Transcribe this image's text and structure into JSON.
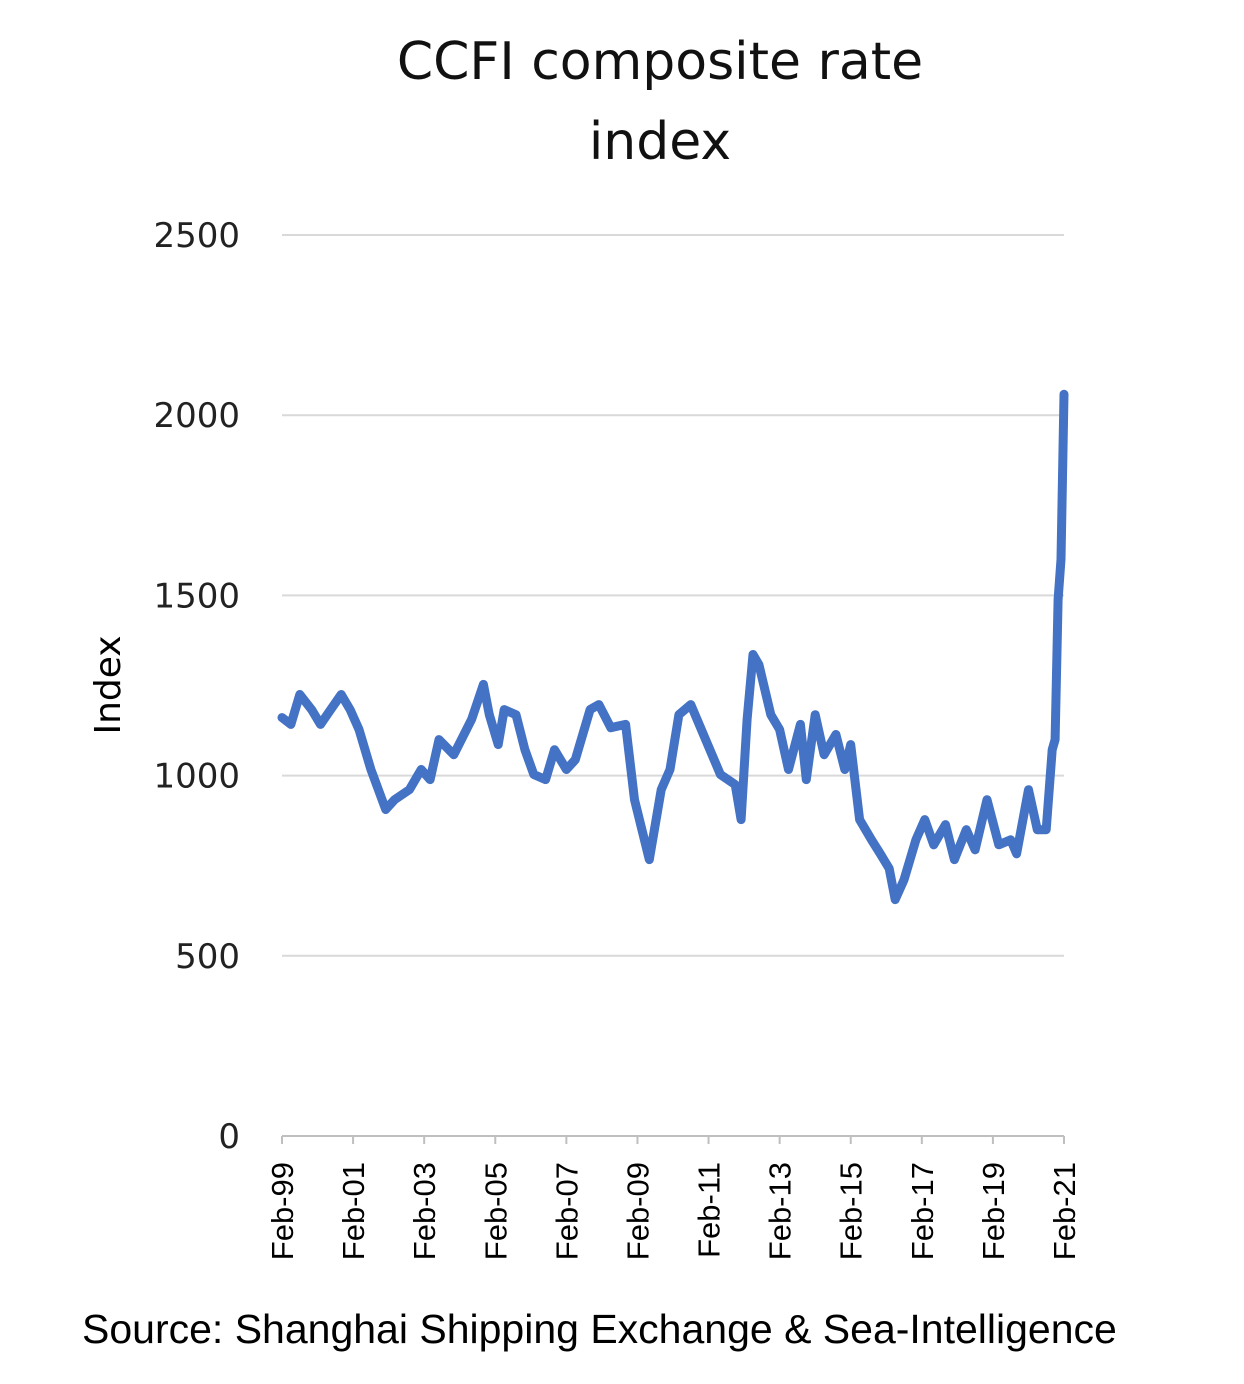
{
  "chart_data": {
    "type": "line",
    "title": "CCFI composite rate index",
    "xlabel": "",
    "ylabel": "Index",
    "ylim": [
      0,
      2500
    ],
    "yticks": [
      0,
      500,
      1000,
      1500,
      2000,
      2500
    ],
    "xlim": [
      "1999-02",
      "2021-02"
    ],
    "xtick_labels": [
      "Feb-99",
      "Feb-01",
      "Feb-03",
      "Feb-05",
      "Feb-07",
      "Feb-09",
      "Feb-11",
      "Feb-13",
      "Feb-15",
      "Feb-17",
      "Feb-19",
      "Feb-21"
    ],
    "grid": "horizontal",
    "line_color": "#4472C4",
    "series": [
      {
        "x": [
          "1999-02",
          "1999-05",
          "1999-08",
          "1999-12",
          "2000-03",
          "2000-06",
          "2000-10",
          "2001-01",
          "2001-04",
          "2001-08",
          "2002-01",
          "2002-04",
          "2002-09",
          "2003-01",
          "2003-04",
          "2003-07",
          "2003-12",
          "2004-06",
          "2004-10",
          "2004-12",
          "2005-03",
          "2005-05",
          "2005-09",
          "2005-12",
          "2006-03",
          "2006-07",
          "2006-10",
          "2007-02",
          "2007-05",
          "2007-10",
          "2008-01",
          "2008-05",
          "2008-10",
          "2009-01",
          "2009-06",
          "2009-10",
          "2010-01",
          "2010-04",
          "2010-08",
          "2011-01",
          "2011-06",
          "2011-11",
          "2012-01",
          "2012-03",
          "2012-05",
          "2012-07",
          "2012-11",
          "2013-02",
          "2013-05",
          "2013-09",
          "2013-11",
          "2014-02",
          "2014-05",
          "2014-09",
          "2014-12",
          "2015-02",
          "2015-05",
          "2015-09",
          "2015-12",
          "2016-03",
          "2016-05",
          "2016-08",
          "2016-12",
          "2017-03",
          "2017-06",
          "2017-10",
          "2018-01",
          "2018-05",
          "2018-08",
          "2018-12",
          "2019-04",
          "2019-08",
          "2019-10",
          "2020-02",
          "2020-05",
          "2020-08",
          "2020-10",
          "2020-11",
          "2020-12",
          "2021-01",
          "2021-02"
        ],
        "values": [
          1161,
          1142,
          1225,
          1183,
          1142,
          1178,
          1225,
          1183,
          1128,
          1017,
          906,
          933,
          961,
          1017,
          989,
          1100,
          1058,
          1156,
          1253,
          1169,
          1086,
          1183,
          1169,
          1072,
          1003,
          989,
          1072,
          1017,
          1044,
          1183,
          1197,
          1133,
          1142,
          933,
          767,
          961,
          1017,
          1169,
          1197,
          1100,
          1003,
          975,
          878,
          1156,
          1336,
          1308,
          1169,
          1128,
          1017,
          1142,
          989,
          1169,
          1058,
          1114,
          1017,
          1086,
          878,
          822,
          783,
          742,
          656,
          711,
          822,
          878,
          808,
          864,
          767,
          850,
          794,
          933,
          808,
          822,
          783,
          961,
          850,
          850,
          1072,
          1100,
          1489,
          1600,
          2058
        ]
      }
    ]
  },
  "source": "Source: Shanghai Shipping Exchange & Sea-Intelligence"
}
